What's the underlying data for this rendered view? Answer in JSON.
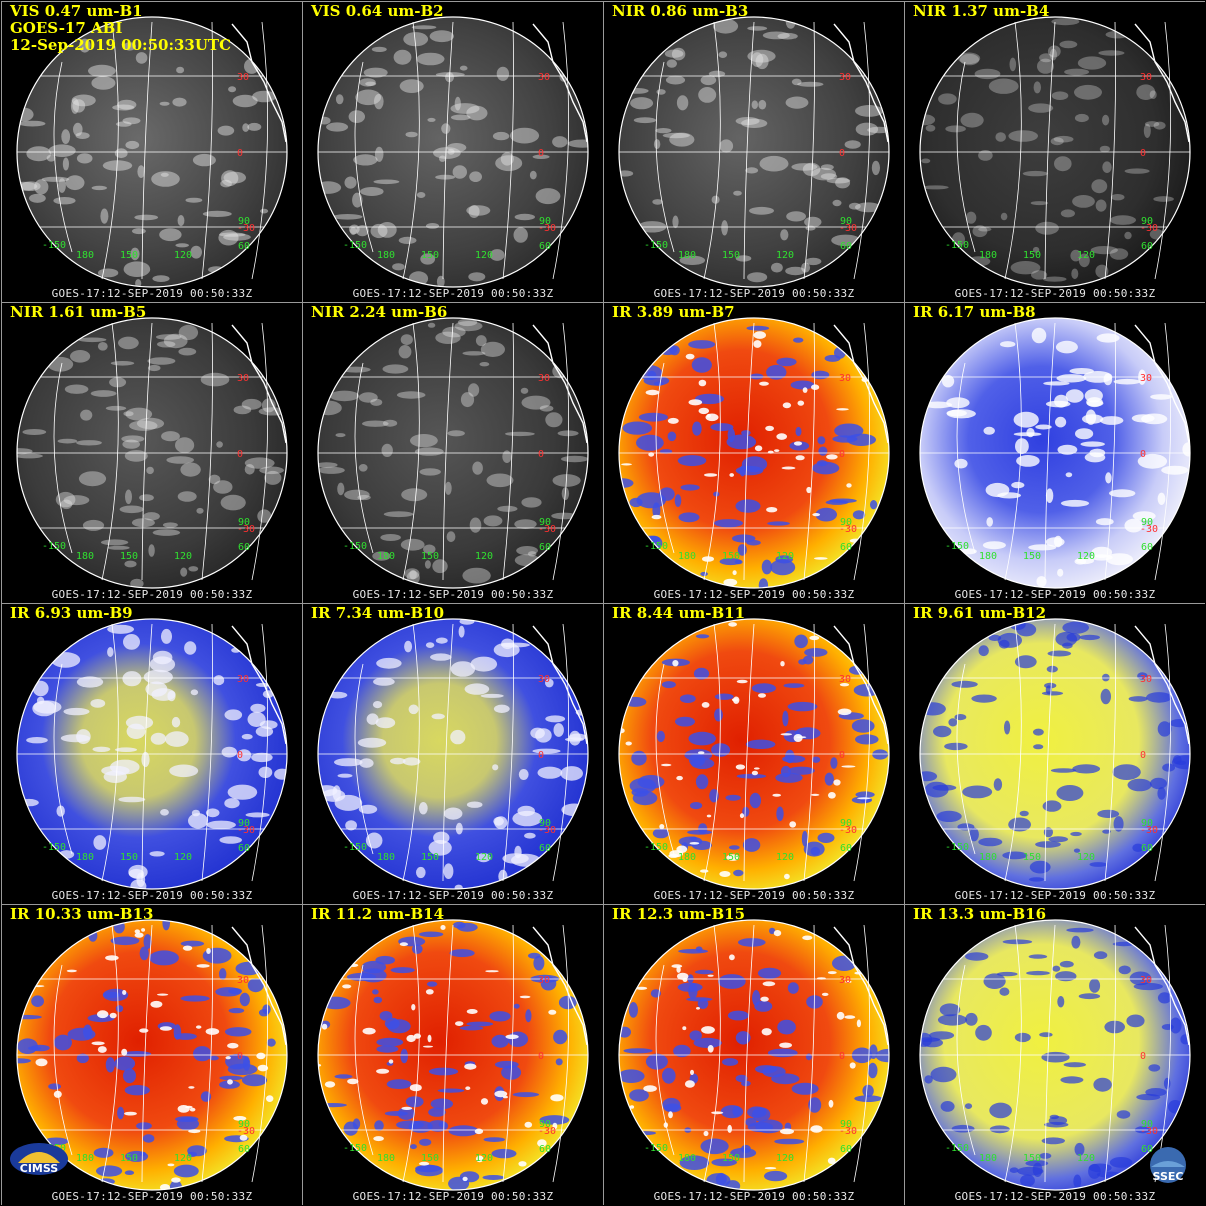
{
  "header": {
    "line2": "GOES-17 ABI",
    "line3": "12-Sep-2019 00:50:33UTC"
  },
  "footer_text": "GOES-17:12-SEP-2019 00:50:33Z",
  "grid_labels": {
    "lat": [
      "30",
      "0",
      "-30"
    ],
    "lon": [
      "-150",
      "180",
      "150",
      "120",
      "60",
      "90"
    ]
  },
  "logos": {
    "left": "CIMSS",
    "right": "SSEC"
  },
  "panels": [
    {
      "label": "VIS 0.47 um-B1",
      "style": "vis",
      "bright": 0.55
    },
    {
      "label": "VIS 0.64 um-B2",
      "style": "vis",
      "bright": 0.5
    },
    {
      "label": "NIR 0.86 um-B3",
      "style": "vis",
      "bright": 0.5
    },
    {
      "label": "NIR 1.37 um-B4",
      "style": "vis",
      "bright": 0.18
    },
    {
      "label": "NIR 1.61 um-B5",
      "style": "vis",
      "bright": 0.4
    },
    {
      "label": "NIR 2.24 um-B6",
      "style": "vis",
      "bright": 0.38
    },
    {
      "label": "IR 3.89 um-B7",
      "style": "ir-warm",
      "bright": 1
    },
    {
      "label": "IR 6.17 um-B8",
      "style": "wv-light",
      "bright": 1
    },
    {
      "label": "IR 6.93 um-B9",
      "style": "wv",
      "bright": 1
    },
    {
      "label": "IR 7.34 um-B10",
      "style": "wv",
      "bright": 1
    },
    {
      "label": "IR 8.44 um-B11",
      "style": "ir-warm",
      "bright": 1
    },
    {
      "label": "IR 9.61 um-B12",
      "style": "wv-yellow",
      "bright": 1
    },
    {
      "label": "IR 10.33 um-B13",
      "style": "ir-warm",
      "bright": 1
    },
    {
      "label": "IR 11.2 um-B14",
      "style": "ir-warm",
      "bright": 1
    },
    {
      "label": "IR 12.3 um-B15",
      "style": "ir-warm",
      "bright": 1
    },
    {
      "label": "IR 13.3 um-B16",
      "style": "wv-yellow",
      "bright": 1
    }
  ]
}
